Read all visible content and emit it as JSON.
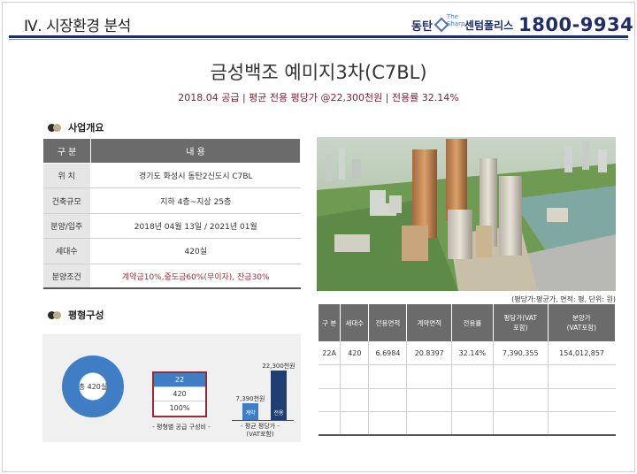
{
  "header": {
    "section_title": "Ⅳ. 시장환경 분석",
    "brand_left": "동탄",
    "brand_logo_text": "The Sharp",
    "brand_center": "센텀폴리스",
    "brand_phone": "1800-9934"
  },
  "title": "금성백조 예미지3차(C7BL)",
  "subtitle": "2018.04 공급 | 평균 전용 평당가 @22,300천원 | 전용률 32.14%",
  "overview": {
    "heading": "사업개요",
    "col_key": "구 분",
    "col_val": "내 용",
    "rows": [
      {
        "k": "위 치",
        "v": "경기도 화성시 동탄2신도시 C7BL"
      },
      {
        "k": "건축규모",
        "v": "지하 4층~지상 25층"
      },
      {
        "k": "분양/입주",
        "v": "2018년 04월 13일 / 2021년 01월"
      },
      {
        "k": "세대수",
        "v": "420실"
      },
      {
        "k": "분양조건",
        "v": "계약금10%,중도금60%(무이자), 잔금30%"
      }
    ]
  },
  "photo_note": "(평당가:평균가, 면적: 평, 단위: 원)",
  "unit_table": {
    "headers": [
      "구 분",
      "세대수",
      "전용면적",
      "계약면적",
      "전용률",
      "평당가(VAT\n포함)",
      "분양가\n(VAT포함)"
    ],
    "rows": [
      [
        "22A",
        "420",
        "6.6984",
        "20.8397",
        "32.14%",
        "7,390,355",
        "154,012,857"
      ],
      [
        "",
        "",
        "",
        "",
        "",
        "",
        ""
      ],
      [
        "",
        "",
        "",
        "",
        "",
        "",
        ""
      ],
      [
        "",
        "",
        "",
        "",
        "",
        "",
        ""
      ]
    ]
  },
  "composition": {
    "heading": "평형구성",
    "donut_label": "총 420실",
    "ratio": {
      "type": "22",
      "units": "420",
      "percent": "100%"
    },
    "ratio_caption": "- 평형별 공급 구성비 -",
    "price_caption": "- 평균 평당가 -\n(VAT포함)"
  },
  "chart_data": {
    "type": "bar",
    "categories": [
      "계약",
      "전용"
    ],
    "values": [
      7390,
      22300
    ],
    "data_labels": [
      "7,390천원",
      "22,300천원"
    ],
    "title": "",
    "xlabel": "",
    "ylabel": "",
    "colors": [
      "#3f7ec4",
      "#1f3f72"
    ]
  }
}
